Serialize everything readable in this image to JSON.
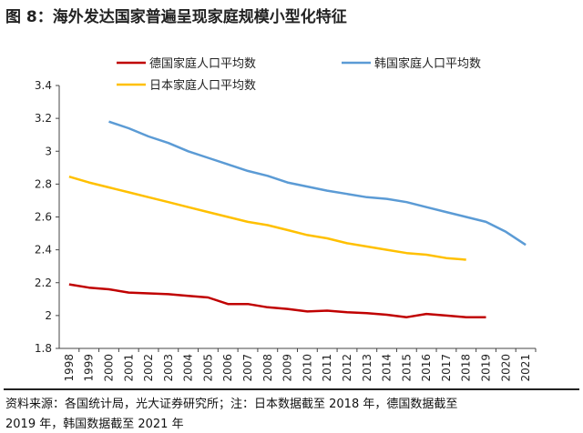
{
  "title": "图 8：海外发达国家普遍呈现家庭规模小型化特征",
  "source_line1": "资料来源：各国统计局，光大证券研究所；注：日本数据截至 2018 年，德国数据截至",
  "source_line2": "2019 年，韩国数据截至 2021 年",
  "chart_data": {
    "type": "line",
    "x": [
      1998,
      1999,
      2000,
      2001,
      2002,
      2003,
      2004,
      2005,
      2006,
      2007,
      2008,
      2009,
      2010,
      2011,
      2012,
      2013,
      2014,
      2015,
      2016,
      2017,
      2018,
      2019,
      2020,
      2021
    ],
    "ylim": [
      1.8,
      3.4
    ],
    "yticks": [
      1.8,
      2,
      2.2,
      2.4,
      2.6,
      2.8,
      3,
      3.2,
      3.4
    ],
    "ytick_labels": [
      "1.8",
      "2",
      "2.2",
      "2.4",
      "2.6",
      "2.8",
      "3",
      "3.2",
      "3.4"
    ],
    "grid": false,
    "legend_position": "top",
    "series": [
      {
        "name": "德国家庭人口平均数",
        "color": "#C00000",
        "values": [
          2.19,
          2.17,
          2.16,
          2.14,
          2.135,
          2.13,
          2.12,
          2.11,
          2.07,
          2.07,
          2.05,
          2.04,
          2.025,
          2.03,
          2.02,
          2.015,
          2.005,
          1.99,
          2.01,
          2.0,
          1.99,
          1.99,
          null,
          null
        ]
      },
      {
        "name": "韩国家庭人口平均数",
        "color": "#5B9BD5",
        "values": [
          null,
          null,
          3.18,
          3.14,
          3.09,
          3.05,
          3.0,
          2.96,
          2.92,
          2.88,
          2.85,
          2.81,
          2.785,
          2.76,
          2.74,
          2.72,
          2.71,
          2.69,
          2.66,
          2.63,
          2.6,
          2.57,
          2.51,
          2.43
        ]
      },
      {
        "name": "日本家庭人口平均数",
        "color": "#FFC000",
        "values": [
          2.845,
          2.81,
          2.78,
          2.75,
          2.72,
          2.69,
          2.66,
          2.63,
          2.6,
          2.57,
          2.55,
          2.52,
          2.49,
          2.47,
          2.44,
          2.42,
          2.4,
          2.38,
          2.37,
          2.35,
          2.34,
          null,
          null,
          null
        ]
      }
    ]
  }
}
